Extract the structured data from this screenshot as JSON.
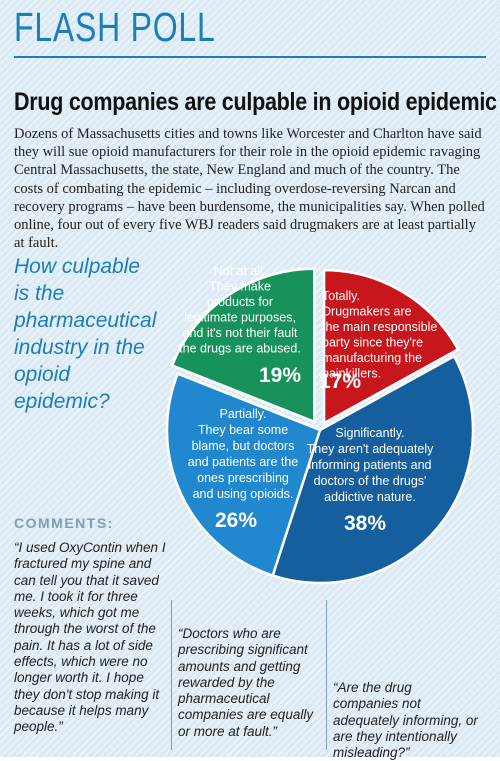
{
  "header": {
    "title": "FLASH POLL"
  },
  "headline": "Drug companies are culpable in opioid epidemic",
  "intro": "Dozens of Massachusetts cities and towns like Worcester and Charlton have said they will sue opioid manufacturers for their role in the opioid epidemic ravaging Central Massachusetts, the state, New England and much of the country. The costs of combating the epidemic – including overdose-reversing Narcan and recovery programs – have been burdensome, the municipalities say. When polled online, four out of every five WBJ readers said drugmakers are at least partially at fault.",
  "question": "How culpable is the pharmaceutical industry in the opioid epidemic?",
  "chart_data": {
    "type": "pie",
    "title": "How culpable is the pharmaceutical industry in the opioid epidemic?",
    "slices": [
      {
        "label": "Totally. Drugmakers are the main responsible party since they're manufacturing the painkillers.",
        "value": 17,
        "display": "17%",
        "color": "#c8161d"
      },
      {
        "label": "Significantly. They aren't adequately informing patients and doctors of the drugs' addictive nature.",
        "value": 38,
        "display": "38%",
        "color": "#155f9f"
      },
      {
        "label": "Partially. They bear some blame, but doctors and patients are the ones prescribing and using opioids.",
        "value": 26,
        "display": "26%",
        "color": "#2188cf"
      },
      {
        "label": "Not at all. They make products for legitimate purposes, and it's not their fault the drugs are abused.",
        "value": 19,
        "display": "19%",
        "color": "#17925a"
      }
    ]
  },
  "chart_labels": {
    "totally": [
      "Totally.",
      "Drugmakers are",
      "the main responsible",
      "party since they're",
      "manufacturing the",
      "painkillers."
    ],
    "significantly": [
      "Significantly.",
      "They aren't adequately",
      "informing patients and",
      "doctors of the drugs'",
      "addictive nature."
    ],
    "partially": [
      "Partially.",
      "They bear some",
      "blame, but doctors",
      "and patients are the",
      "ones prescribing",
      "and using opioids."
    ],
    "notatall": [
      "Not at all.",
      "They make",
      "products for",
      "legitimate purposes,",
      "and it's not their fault",
      "the drugs are abused."
    ]
  },
  "comments": {
    "heading": "COMMENTS:",
    "quote1": "“I used OxyContin when I fractured my spine and can tell you that it saved me. I took it for three weeks, which got me through the worst of the pain. It has a lot of side effects, which were no longer worth it. I hope they don't stop making it because it helps many people.”",
    "quote2": "“Doctors who are prescribing significant amounts and getting rewarded by the pharmaceutical companies are equally or more at fault.”",
    "quote3": "“Are the drug companies not adequately informing, or are they intentionally misleading?”"
  }
}
